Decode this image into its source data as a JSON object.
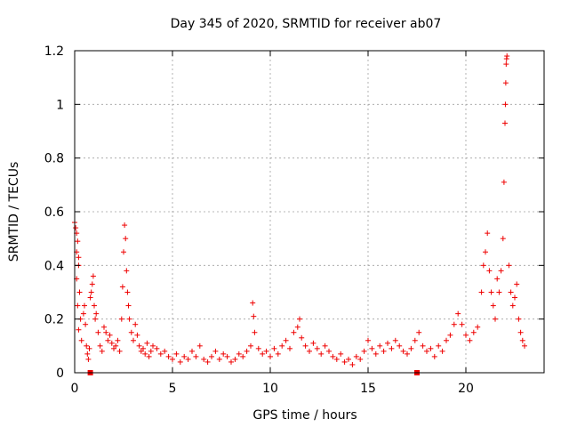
{
  "chart_data": {
    "type": "scatter",
    "title": "Day 345 of 2020, SRMTID for receiver ab07",
    "xlabel": "GPS time / hours",
    "ylabel": "SRMTID / TECUs",
    "xlim": [
      0,
      24
    ],
    "ylim": [
      0,
      1.2
    ],
    "xticks": [
      0,
      5,
      10,
      15,
      20
    ],
    "xtick_labels": [
      "0",
      "5",
      "10",
      "15",
      "20"
    ],
    "yticks": [
      0,
      0.2,
      0.4,
      0.6,
      0.8,
      1,
      1.2
    ],
    "ytick_labels": [
      "0",
      "0.2",
      "0.4",
      "0.6",
      "0.8",
      "1",
      "1.2"
    ],
    "grid": true,
    "marker": "plus",
    "colors": {
      "series": "#ee0000",
      "grid": "#a0a0a0",
      "axis": "#000000"
    },
    "series": [
      {
        "name": "SRMTID",
        "points": [
          [
            0.0,
            0.56
          ],
          [
            0.05,
            0.54
          ],
          [
            0.1,
            0.52
          ],
          [
            0.15,
            0.49
          ],
          [
            0.1,
            0.45
          ],
          [
            0.2,
            0.43
          ],
          [
            0.2,
            0.4
          ],
          [
            0.1,
            0.35
          ],
          [
            0.25,
            0.3
          ],
          [
            0.15,
            0.25
          ],
          [
            0.3,
            0.2
          ],
          [
            0.2,
            0.16
          ],
          [
            0.35,
            0.12
          ],
          [
            0.45,
            0.22
          ],
          [
            0.5,
            0.25
          ],
          [
            0.55,
            0.18
          ],
          [
            0.6,
            0.1
          ],
          [
            0.65,
            0.07
          ],
          [
            0.7,
            0.05
          ],
          [
            0.75,
            0.09
          ],
          [
            0.8,
            0.28
          ],
          [
            0.85,
            0.3
          ],
          [
            0.9,
            0.33
          ],
          [
            0.95,
            0.36
          ],
          [
            1.0,
            0.25
          ],
          [
            1.05,
            0.2
          ],
          [
            1.1,
            0.22
          ],
          [
            1.2,
            0.15
          ],
          [
            1.3,
            0.1
          ],
          [
            1.4,
            0.08
          ],
          [
            1.5,
            0.17
          ],
          [
            1.6,
            0.15
          ],
          [
            1.7,
            0.12
          ],
          [
            1.8,
            0.14
          ],
          [
            1.9,
            0.11
          ],
          [
            2.0,
            0.09
          ],
          [
            2.1,
            0.1
          ],
          [
            2.2,
            0.12
          ],
          [
            2.3,
            0.08
          ],
          [
            2.4,
            0.2
          ],
          [
            2.45,
            0.32
          ],
          [
            2.5,
            0.45
          ],
          [
            2.55,
            0.55
          ],
          [
            2.6,
            0.5
          ],
          [
            2.65,
            0.38
          ],
          [
            2.7,
            0.3
          ],
          [
            2.75,
            0.25
          ],
          [
            2.8,
            0.2
          ],
          [
            2.9,
            0.15
          ],
          [
            3.0,
            0.12
          ],
          [
            3.1,
            0.18
          ],
          [
            3.2,
            0.14
          ],
          [
            3.3,
            0.1
          ],
          [
            3.4,
            0.08
          ],
          [
            3.5,
            0.09
          ],
          [
            3.6,
            0.07
          ],
          [
            3.7,
            0.11
          ],
          [
            3.8,
            0.06
          ],
          [
            3.9,
            0.08
          ],
          [
            4.0,
            0.1
          ],
          [
            4.2,
            0.09
          ],
          [
            4.4,
            0.07
          ],
          [
            4.6,
            0.08
          ],
          [
            4.8,
            0.06
          ],
          [
            5.0,
            0.05
          ],
          [
            5.2,
            0.07
          ],
          [
            5.4,
            0.04
          ],
          [
            5.6,
            0.06
          ],
          [
            5.8,
            0.05
          ],
          [
            6.0,
            0.08
          ],
          [
            6.2,
            0.06
          ],
          [
            6.4,
            0.1
          ],
          [
            6.6,
            0.05
          ],
          [
            6.8,
            0.04
          ],
          [
            7.0,
            0.06
          ],
          [
            7.2,
            0.08
          ],
          [
            7.4,
            0.05
          ],
          [
            7.6,
            0.07
          ],
          [
            7.8,
            0.06
          ],
          [
            8.0,
            0.04
          ],
          [
            8.2,
            0.05
          ],
          [
            8.4,
            0.07
          ],
          [
            8.6,
            0.06
          ],
          [
            8.8,
            0.08
          ],
          [
            9.0,
            0.1
          ],
          [
            9.1,
            0.26
          ],
          [
            9.15,
            0.21
          ],
          [
            9.2,
            0.15
          ],
          [
            9.4,
            0.09
          ],
          [
            9.6,
            0.07
          ],
          [
            9.8,
            0.08
          ],
          [
            10.0,
            0.06
          ],
          [
            10.2,
            0.09
          ],
          [
            10.4,
            0.07
          ],
          [
            10.6,
            0.1
          ],
          [
            10.8,
            0.12
          ],
          [
            11.0,
            0.09
          ],
          [
            11.2,
            0.15
          ],
          [
            11.4,
            0.17
          ],
          [
            11.5,
            0.2
          ],
          [
            11.6,
            0.13
          ],
          [
            11.8,
            0.1
          ],
          [
            12.0,
            0.08
          ],
          [
            12.2,
            0.11
          ],
          [
            12.4,
            0.09
          ],
          [
            12.6,
            0.07
          ],
          [
            12.8,
            0.1
          ],
          [
            13.0,
            0.08
          ],
          [
            13.2,
            0.06
          ],
          [
            13.4,
            0.05
          ],
          [
            13.6,
            0.07
          ],
          [
            13.8,
            0.04
          ],
          [
            14.0,
            0.05
          ],
          [
            14.2,
            0.03
          ],
          [
            14.4,
            0.06
          ],
          [
            14.6,
            0.05
          ],
          [
            14.8,
            0.08
          ],
          [
            15.0,
            0.12
          ],
          [
            15.2,
            0.09
          ],
          [
            15.4,
            0.07
          ],
          [
            15.6,
            0.1
          ],
          [
            15.8,
            0.08
          ],
          [
            16.0,
            0.11
          ],
          [
            16.2,
            0.09
          ],
          [
            16.4,
            0.12
          ],
          [
            16.6,
            0.1
          ],
          [
            16.8,
            0.08
          ],
          [
            17.0,
            0.07
          ],
          [
            17.2,
            0.09
          ],
          [
            17.4,
            0.12
          ],
          [
            17.6,
            0.15
          ],
          [
            17.8,
            0.1
          ],
          [
            18.0,
            0.08
          ],
          [
            18.2,
            0.09
          ],
          [
            18.4,
            0.06
          ],
          [
            18.6,
            0.1
          ],
          [
            18.8,
            0.08
          ],
          [
            19.0,
            0.12
          ],
          [
            19.2,
            0.14
          ],
          [
            19.4,
            0.18
          ],
          [
            19.6,
            0.22
          ],
          [
            19.8,
            0.18
          ],
          [
            20.0,
            0.14
          ],
          [
            20.2,
            0.12
          ],
          [
            20.4,
            0.15
          ],
          [
            20.6,
            0.17
          ],
          [
            20.8,
            0.3
          ],
          [
            20.9,
            0.4
          ],
          [
            21.0,
            0.45
          ],
          [
            21.1,
            0.52
          ],
          [
            21.2,
            0.38
          ],
          [
            21.3,
            0.3
          ],
          [
            21.4,
            0.25
          ],
          [
            21.5,
            0.2
          ],
          [
            21.6,
            0.35
          ],
          [
            21.7,
            0.3
          ],
          [
            21.8,
            0.38
          ],
          [
            21.9,
            0.5
          ],
          [
            21.95,
            0.71
          ],
          [
            22.0,
            0.93
          ],
          [
            22.02,
            1.0
          ],
          [
            22.04,
            1.08
          ],
          [
            22.06,
            1.15
          ],
          [
            22.08,
            1.17
          ],
          [
            22.1,
            1.18
          ],
          [
            22.2,
            0.4
          ],
          [
            22.3,
            0.3
          ],
          [
            22.4,
            0.25
          ],
          [
            22.5,
            0.28
          ],
          [
            22.6,
            0.33
          ],
          [
            22.7,
            0.2
          ],
          [
            22.8,
            0.15
          ],
          [
            22.9,
            0.12
          ],
          [
            23.0,
            0.1
          ]
        ]
      }
    ],
    "zero_markers": [
      0.8,
      17.5
    ]
  }
}
